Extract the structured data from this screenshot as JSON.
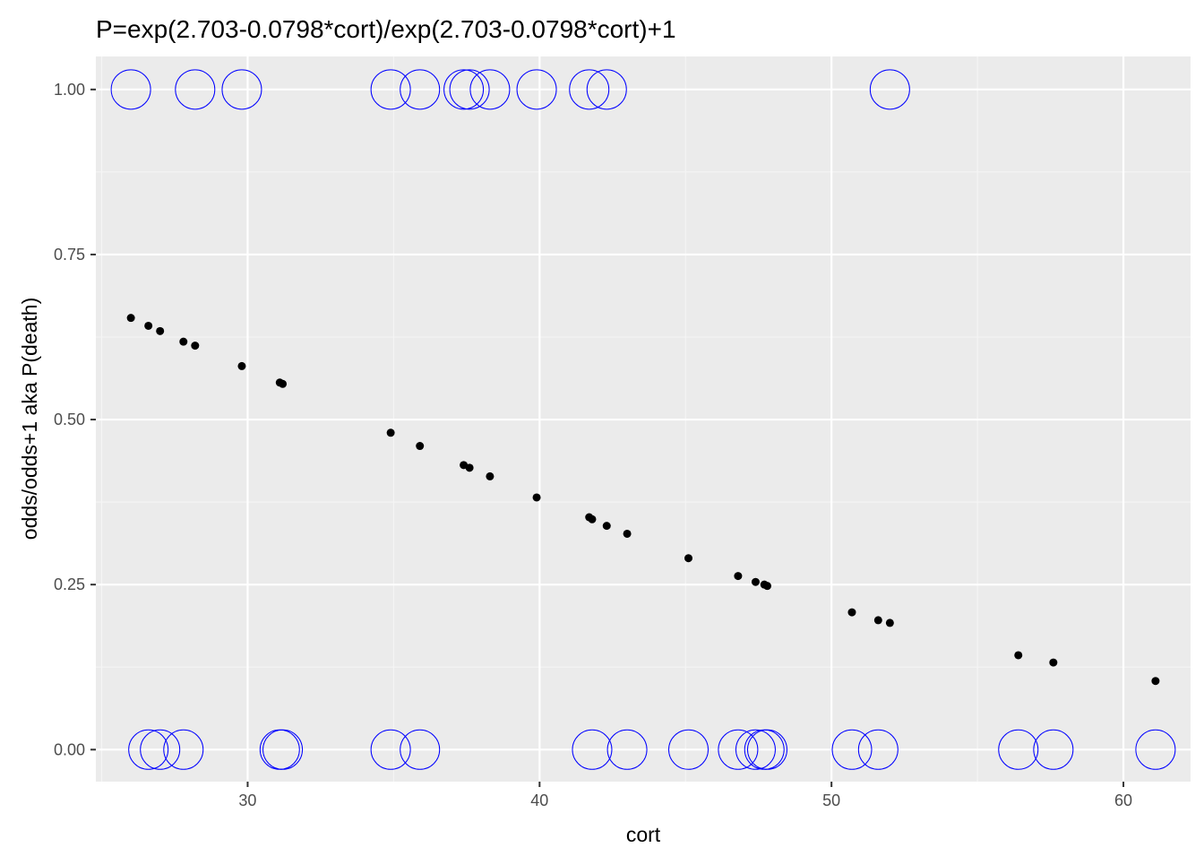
{
  "chart_data": {
    "type": "scatter",
    "title": "P=exp(2.703-0.0798*cort)/exp(2.703-0.0798*cort)+1",
    "xlabel": "cort",
    "ylabel": "odds/odds+1 aka P(death)",
    "xlim": [
      24.8,
      62.3
    ],
    "ylim": [
      -0.0485,
      1.05
    ],
    "x_ticks": [
      30,
      40,
      50,
      60
    ],
    "x_tick_labels": [
      "30",
      "40",
      "50",
      "60"
    ],
    "y_ticks": [
      0,
      0.25,
      0.5,
      0.75,
      1
    ],
    "y_tick_labels": [
      "0.00",
      "0.25",
      "0.50",
      "0.75",
      "1.00"
    ],
    "grid": true,
    "colors": {
      "panel_background": "#ebebeb",
      "grid_major": "#ffffff",
      "grid_minor": "#f5f5f5",
      "fitted_points": "#000000",
      "observed_points": "#0000ff"
    },
    "series": [
      {
        "marker": "filled-circle",
        "x": [
          26.0,
          26.6,
          27.0,
          27.8,
          28.2,
          29.8,
          31.1,
          31.2,
          34.9,
          35.9,
          37.4,
          37.6,
          38.3,
          39.9,
          41.7,
          41.8,
          42.3,
          43.0,
          45.1,
          46.8,
          47.4,
          47.7,
          47.8,
          50.7,
          51.6,
          52.0,
          56.4,
          57.6,
          61.1
        ],
        "y": [
          0.654,
          0.642,
          0.634,
          0.618,
          0.612,
          0.581,
          0.556,
          0.554,
          0.48,
          0.46,
          0.431,
          0.427,
          0.414,
          0.382,
          0.352,
          0.349,
          0.339,
          0.327,
          0.29,
          0.263,
          0.254,
          0.25,
          0.248,
          0.208,
          0.196,
          0.192,
          0.143,
          0.132,
          0.104
        ]
      },
      {
        "marker": "open-circle",
        "x": [
          26.0,
          28.2,
          29.8,
          34.9,
          35.9,
          37.4,
          37.6,
          38.3,
          39.9,
          41.7,
          42.3,
          52.0,
          26.6,
          27.0,
          27.8,
          31.1,
          31.2,
          34.9,
          35.9,
          41.8,
          43.0,
          45.1,
          46.8,
          47.4,
          47.7,
          47.8,
          50.7,
          51.6,
          56.4,
          57.6,
          61.1
        ],
        "y": [
          1,
          1,
          1,
          1,
          1,
          1,
          1,
          1,
          1,
          1,
          1,
          1,
          0,
          0,
          0,
          0,
          0,
          0,
          0,
          0,
          0,
          0,
          0,
          0,
          0,
          0,
          0,
          0,
          0,
          0,
          0
        ]
      }
    ]
  }
}
